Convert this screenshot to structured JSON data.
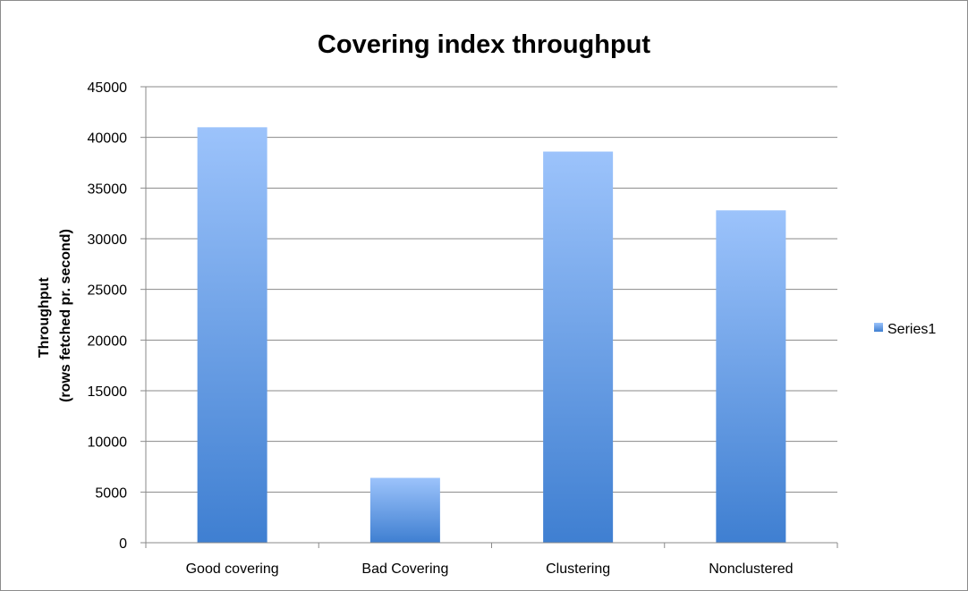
{
  "chart_data": {
    "type": "bar",
    "title": "Covering index throughput",
    "xlabel": "",
    "ylabel_lines": [
      "Throughput",
      "(rows fetched pr. second)"
    ],
    "categories": [
      "Good covering",
      "Bad Covering",
      "Clustering",
      "Nonclustered"
    ],
    "series": [
      {
        "name": "Series1",
        "values": [
          41000,
          6400,
          38600,
          32800
        ]
      }
    ],
    "ylim": [
      0,
      45000
    ],
    "yticks": [
      0,
      5000,
      10000,
      15000,
      20000,
      25000,
      30000,
      35000,
      40000,
      45000
    ],
    "grid": true,
    "legend_position": "right",
    "colors": {
      "bar_top": "#9cc3fb",
      "bar_bottom": "#3f7fd1",
      "grid": "#8a8a8a"
    }
  }
}
